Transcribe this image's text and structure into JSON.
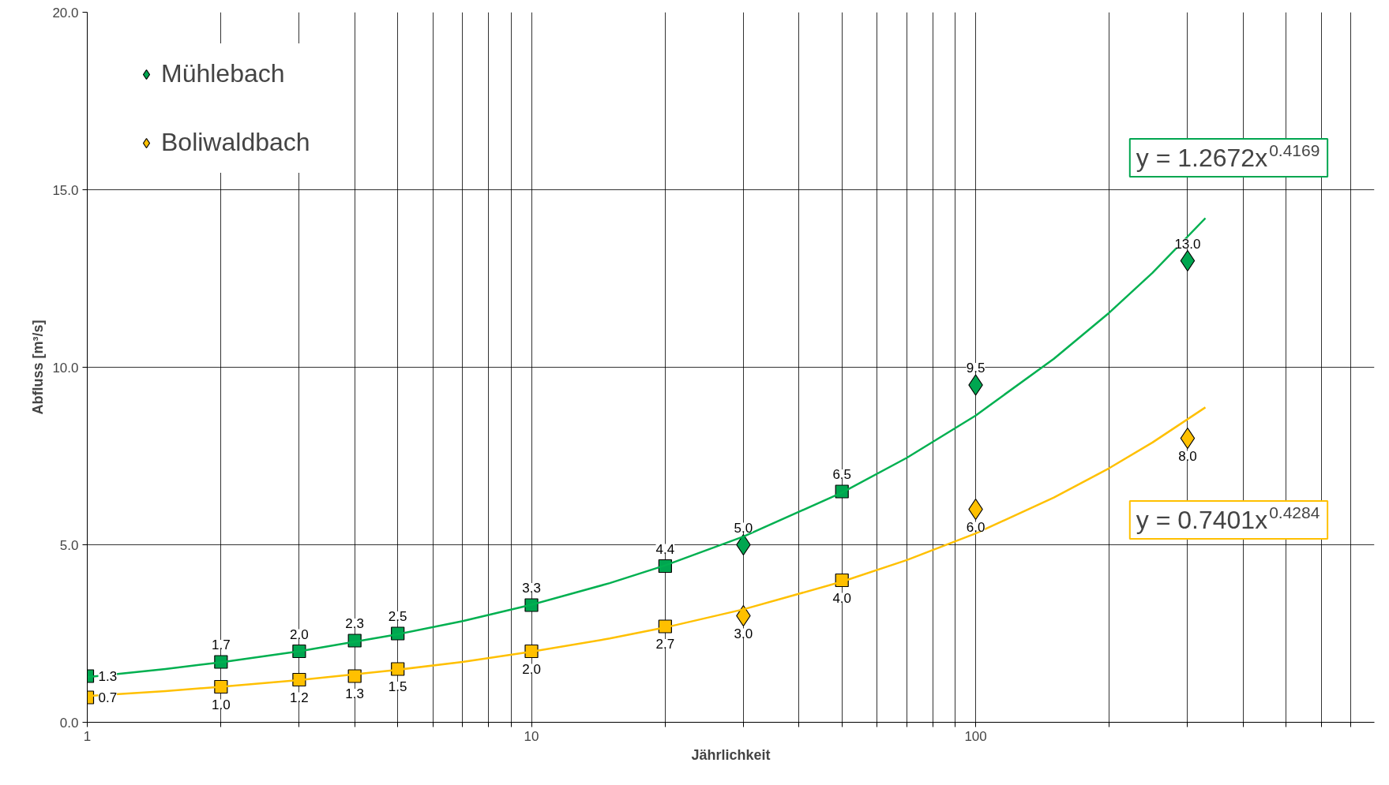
{
  "chart_data": {
    "type": "scatter",
    "xlabel": "Jährlichkeit",
    "ylabel": "Abfluss [m³/s]",
    "log": "x",
    "xlim": [
      1,
      790
    ],
    "ylim": [
      0,
      20
    ],
    "xticks": [
      {
        "value": 1,
        "label": "1"
      },
      {
        "value": 2,
        "label": null
      },
      {
        "value": 3,
        "label": null
      },
      {
        "value": 4,
        "label": null
      },
      {
        "value": 5,
        "label": null
      },
      {
        "value": 6,
        "label": null
      },
      {
        "value": 7,
        "label": null
      },
      {
        "value": 8,
        "label": null
      },
      {
        "value": 9,
        "label": null
      },
      {
        "value": 10,
        "label": "10"
      },
      {
        "value": 20,
        "label": null
      },
      {
        "value": 30,
        "label": null
      },
      {
        "value": 40,
        "label": null
      },
      {
        "value": 50,
        "label": null
      },
      {
        "value": 60,
        "label": null
      },
      {
        "value": 70,
        "label": null
      },
      {
        "value": 80,
        "label": null
      },
      {
        "value": 90,
        "label": null
      },
      {
        "value": 100,
        "label": "100"
      },
      {
        "value": 200,
        "label": null
      },
      {
        "value": 300,
        "label": null
      },
      {
        "value": 400,
        "label": null
      },
      {
        "value": 500,
        "label": null
      },
      {
        "value": 600,
        "label": null
      },
      {
        "value": 700,
        "label": null
      }
    ],
    "yticks": [
      {
        "value": 0,
        "label": "0.0"
      },
      {
        "value": 5,
        "label": "5.0"
      },
      {
        "value": 10,
        "label": "10.0"
      },
      {
        "value": 15,
        "label": "15.0"
      },
      {
        "value": 20,
        "label": "20.0"
      }
    ],
    "grid": true,
    "legend": "top left",
    "series": [
      {
        "name": "Mühlebach",
        "marker": "diamond",
        "color": "#00a650",
        "x": [
          30,
          100,
          300
        ],
        "values": [
          5.0,
          9.5,
          13.0
        ],
        "value_labels": [
          "5.0",
          "9.5",
          "13.0"
        ]
      },
      {
        "name": "Boliwaldbach",
        "marker": "diamond",
        "color": "#ffc000",
        "x": [
          30,
          100,
          300
        ],
        "values": [
          3.0,
          6.0,
          8.0
        ],
        "value_labels": [
          "3.0",
          "6.0",
          "8.0"
        ]
      },
      {
        "marker": "square",
        "color": "#00a650",
        "x": [
          1,
          2,
          3,
          4,
          5,
          10,
          20,
          50
        ],
        "values": [
          1.3,
          1.7,
          2.0,
          2.3,
          2.5,
          3.3,
          4.4,
          6.5
        ],
        "value_labels": [
          "1.3",
          "1.7",
          "2.0",
          "2.3",
          "2.5",
          "3.3",
          "4.4",
          "6.5"
        ]
      },
      {
        "marker": "square",
        "color": "#ffc000",
        "x": [
          1,
          2,
          3,
          4,
          5,
          10,
          20,
          50
        ],
        "values": [
          0.7,
          1.0,
          1.2,
          1.3,
          1.5,
          2.0,
          2.7,
          4.0
        ],
        "value_labels": [
          "0.7",
          "1.0",
          "1.2",
          "1.3",
          "1.5",
          "2.0",
          "2.7",
          "4.0"
        ]
      },
      {
        "type": "line",
        "marker": "none",
        "color": "#00b050",
        "x": [
          1,
          1.5,
          2,
          3,
          5,
          7,
          10,
          15,
          20,
          30,
          50,
          70,
          100,
          150,
          200,
          250,
          329
        ],
        "values": [
          1.27,
          1.5,
          1.69,
          2.0,
          2.48,
          2.85,
          3.31,
          3.92,
          4.42,
          5.23,
          6.47,
          7.45,
          8.64,
          10.24,
          11.54,
          12.66,
          14.2
        ]
      },
      {
        "type": "line",
        "marker": "none",
        "color": "#ffc000",
        "x": [
          1,
          1.5,
          2,
          3,
          5,
          7,
          10,
          15,
          20,
          30,
          50,
          70,
          100,
          150,
          200,
          250,
          329
        ],
        "values": [
          0.74,
          0.88,
          1.0,
          1.19,
          1.48,
          1.7,
          1.99,
          2.36,
          2.67,
          3.18,
          3.96,
          4.57,
          5.32,
          6.33,
          7.16,
          7.88,
          8.87
        ]
      }
    ],
    "annotations": [
      "y = 1.2672x$^{0.4169}$",
      "y = 0.7401x$^{0.4284}$"
    ]
  }
}
